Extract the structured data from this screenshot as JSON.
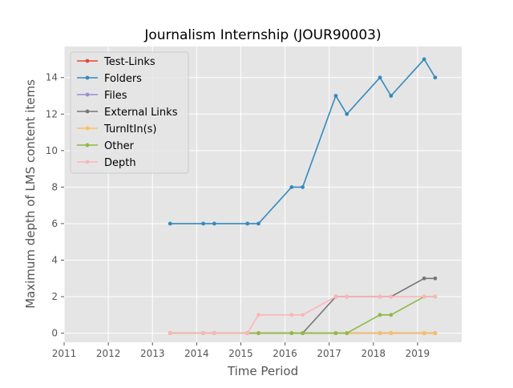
{
  "chart_data": {
    "type": "line",
    "title": "Journalism Internship (JOUR90003)",
    "xlabel": "Time Period",
    "ylabel": "Maximum depth of LMS content items",
    "xlim": [
      2011,
      2020
    ],
    "ylim": [
      -0.5,
      15.7
    ],
    "xticks": [
      2011,
      2012,
      2013,
      2014,
      2015,
      2016,
      2017,
      2018,
      2019
    ],
    "yticks": [
      0,
      2,
      4,
      6,
      8,
      10,
      12,
      14
    ],
    "grid": true,
    "legend_position": "top-left",
    "x": [
      2013.4,
      2014.15,
      2014.4,
      2015.15,
      2015.4,
      2016.15,
      2016.4,
      2017.15,
      2017.4,
      2018.15,
      2018.4,
      2019.15,
      2019.4
    ],
    "series": [
      {
        "name": "Test-Links",
        "color": "#e24a33",
        "values": [
          0,
          0,
          0,
          0,
          0,
          0,
          0,
          0,
          0,
          0,
          0,
          0,
          0
        ]
      },
      {
        "name": "Folders",
        "color": "#348abd",
        "values": [
          6,
          6,
          6,
          6,
          6,
          8,
          8,
          13,
          12,
          14,
          13,
          15,
          14
        ]
      },
      {
        "name": "Files",
        "color": "#988ed5",
        "values": [
          0,
          0,
          0,
          0,
          0,
          0,
          0,
          0,
          0,
          0,
          0,
          0,
          0
        ]
      },
      {
        "name": "External Links",
        "color": "#777777",
        "values": [
          0,
          0,
          0,
          0,
          0,
          0,
          0,
          2,
          2,
          2,
          2,
          3,
          3
        ]
      },
      {
        "name": "TurnItIn(s)",
        "color": "#fbc15e",
        "values": [
          0,
          0,
          0,
          0,
          0,
          0,
          0,
          0,
          0,
          0,
          0,
          0,
          0
        ]
      },
      {
        "name": "Other",
        "color": "#8eba42",
        "values": [
          0,
          0,
          0,
          0,
          0,
          0,
          0,
          0,
          0,
          1,
          1,
          2,
          2
        ]
      },
      {
        "name": "Depth",
        "color": "#ffb5b8",
        "values": [
          0,
          0,
          0,
          0,
          1,
          1,
          1,
          2,
          2,
          2,
          2,
          2,
          2
        ]
      }
    ]
  }
}
